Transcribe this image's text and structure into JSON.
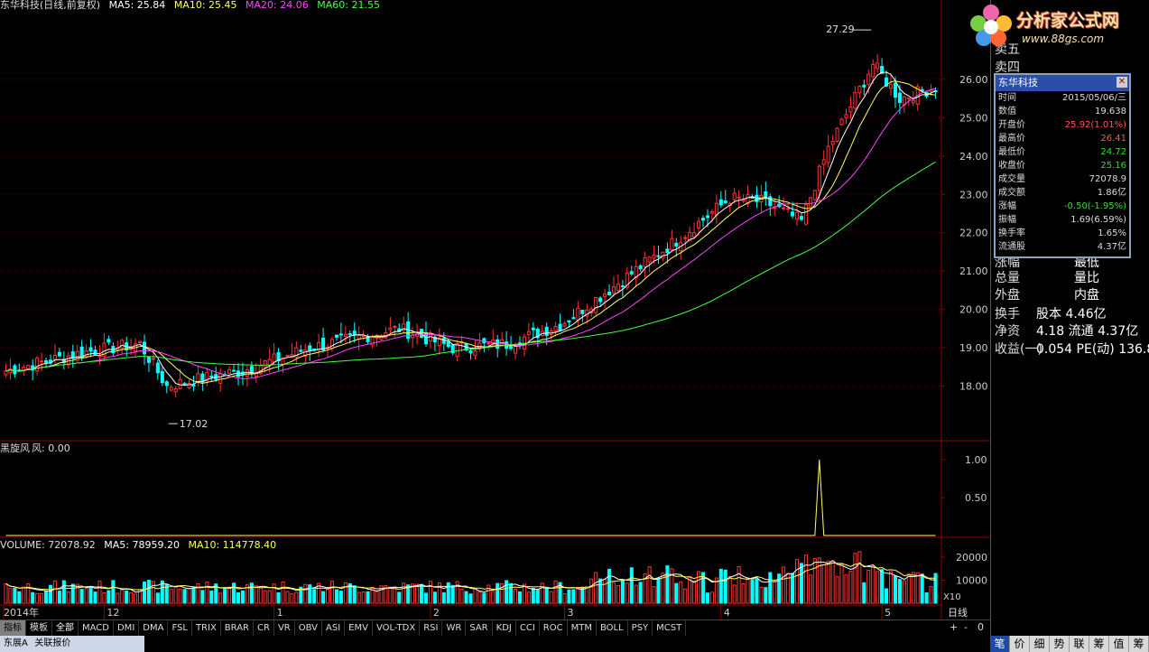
{
  "main_header": {
    "title": "东华科技(日线,前复权)",
    "ma5": "MA5: 25.84",
    "ma10": "MA10: 25.45",
    "ma20": "MA20: 24.06",
    "ma60": "MA60: 21.55"
  },
  "indicator_header": {
    "name": "黑旋风",
    "value": "风: 0.00"
  },
  "volume_header": {
    "vol": "VOLUME: 72078.92",
    "ma5": "MA5: 78959.20",
    "ma10": "MA10: 114778.40"
  },
  "annotations": {
    "high": "27.29",
    "low": "17.02"
  },
  "price_axis": [
    "26.00",
    "25.00",
    "24.00",
    "23.00",
    "22.00",
    "21.00",
    "20.00",
    "19.00",
    "18.00"
  ],
  "indicator_axis": [
    "1.00",
    "0.50"
  ],
  "volume_axis": [
    "20000",
    "10000"
  ],
  "volume_unit": "X10",
  "time_axis": [
    "2014年",
    "12",
    "1",
    "2",
    "3",
    "4",
    "5"
  ],
  "period_label": "日线",
  "tabs": [
    "指标",
    "模板",
    "全部",
    "MACD",
    "DMI",
    "DMA",
    "FSL",
    "TRIX",
    "BRAR",
    "CR",
    "VR",
    "OBV",
    "ASI",
    "EMV",
    "VOL-TDX",
    "RSI",
    "WR",
    "SAR",
    "KDJ",
    "CCI",
    "ROC",
    "MTM",
    "BOLL",
    "PSY",
    "MCST"
  ],
  "tab_controls": [
    "+",
    "-",
    "0"
  ],
  "bottom_strip": [
    "东展A",
    "关联报价"
  ],
  "logo": {
    "name": "分析家公式网",
    "url": "www.88gs.com"
  },
  "right_panel": [
    {
      "k": "卖五",
      "v": ""
    },
    {
      "k": "卖四",
      "v": ""
    },
    {
      "k": "涨幅",
      "v": "最低"
    },
    {
      "k": "总量",
      "v": "量比"
    },
    {
      "k": "外盘",
      "v": "内盘"
    },
    {
      "k": "换手",
      "v": "股本 4.46亿"
    },
    {
      "k": "净资",
      "v": "4.18 流通 4.37亿"
    },
    {
      "k": "收益(一)",
      "v": "0.054 PE(动) 136.8"
    }
  ],
  "popup": {
    "title": "东华科技",
    "rows": [
      {
        "k": "时间",
        "v": "2015/05/06/三",
        "c": "#dddddd"
      },
      {
        "k": "数值",
        "v": "19.638",
        "c": "#dddddd"
      },
      {
        "k": "开盘价",
        "v": "25.92(1.01%)",
        "c": "#ff5555"
      },
      {
        "k": "最高价",
        "v": "26.41",
        "c": "#ff5555"
      },
      {
        "k": "最低价",
        "v": "24.72",
        "c": "#33dd33"
      },
      {
        "k": "收盘价",
        "v": "25.16",
        "c": "#33dd33"
      },
      {
        "k": "成交量",
        "v": "72078.9",
        "c": "#dddddd"
      },
      {
        "k": "成交额",
        "v": "1.86亿",
        "c": "#dddddd"
      },
      {
        "k": "涨幅",
        "v": "-0.50(-1.95%)",
        "c": "#33dd33"
      },
      {
        "k": "振幅",
        "v": "1.69(6.59%)",
        "c": "#dddddd"
      },
      {
        "k": "换手率",
        "v": "1.65%",
        "c": "#dddddd"
      },
      {
        "k": "流通股",
        "v": "4.37亿",
        "c": "#dddddd"
      }
    ]
  },
  "bottom_buttons": [
    "笔",
    "价",
    "细",
    "势",
    "联",
    "筹",
    "值",
    "筹"
  ],
  "colors": {
    "up": "#ff3333",
    "down": "#00ffff",
    "ma5": "#ffffff",
    "ma10": "#ffff66",
    "ma20": "#ff44ff",
    "ma60": "#44ff44",
    "grid": "#8b0000"
  },
  "chart_data": {
    "type": "candlestick",
    "price_range": [
      17.0,
      27.6
    ],
    "highlight_value": 27.29,
    "low_value": 17.02,
    "start_price": 18.4,
    "waypoints": [
      [
        0,
        18.4
      ],
      [
        18,
        18.9
      ],
      [
        30,
        19.1
      ],
      [
        36,
        18.0
      ],
      [
        44,
        18.2
      ],
      [
        53,
        18.4
      ],
      [
        68,
        19.0
      ],
      [
        88,
        19.5
      ],
      [
        100,
        19.0
      ],
      [
        112,
        19.1
      ],
      [
        124,
        19.6
      ],
      [
        136,
        20.6
      ],
      [
        150,
        21.8
      ],
      [
        162,
        22.9
      ],
      [
        170,
        22.8
      ],
      [
        178,
        22.3
      ],
      [
        184,
        24.2
      ],
      [
        194,
        26.4
      ],
      [
        200,
        25.5
      ],
      [
        208,
        25.8
      ]
    ],
    "indicator_signal_index": 182
  }
}
